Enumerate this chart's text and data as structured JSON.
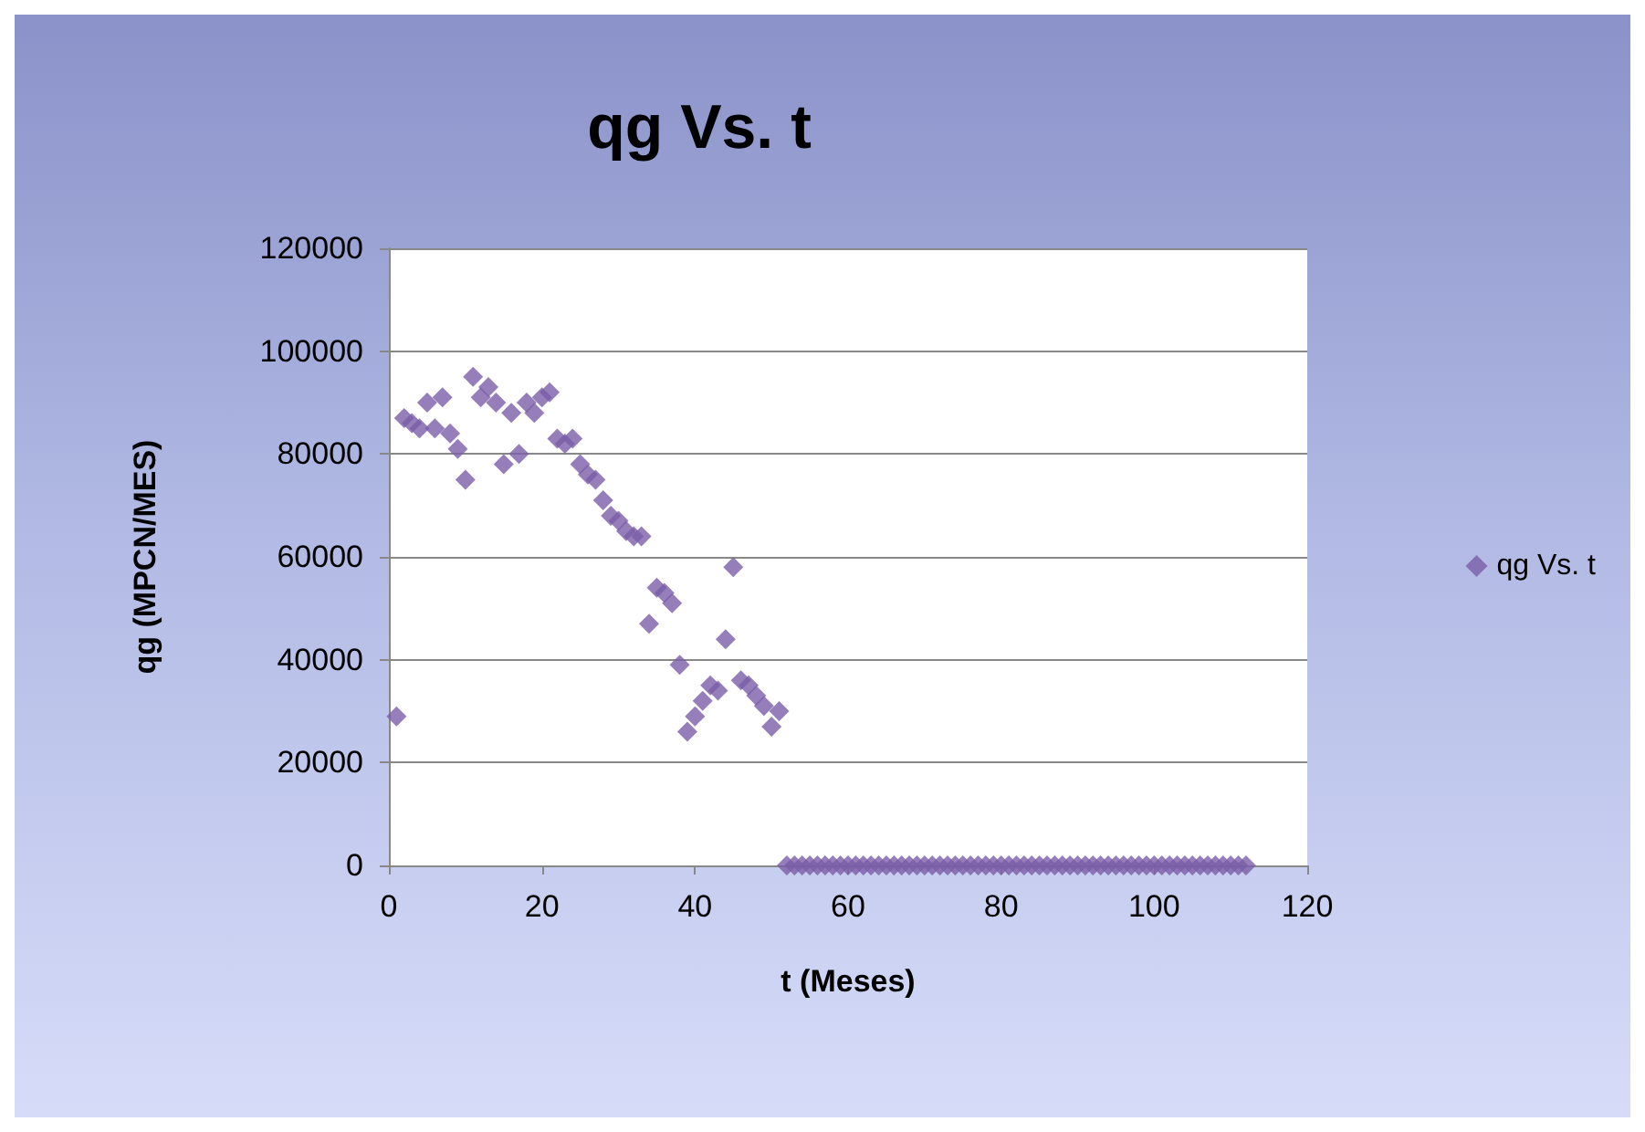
{
  "chart_data": {
    "type": "scatter",
    "title": "qg Vs. t",
    "xlabel": "t (Meses)",
    "ylabel": "qg (MPCN/MES)",
    "xlim": [
      0,
      120
    ],
    "xticks": [
      0,
      20,
      40,
      60,
      80,
      100,
      120
    ],
    "ylim": [
      0,
      120000
    ],
    "yticks": [
      0,
      20000,
      40000,
      60000,
      80000,
      100000,
      120000
    ],
    "grid": "y",
    "legend": "right",
    "marker": "diamond",
    "series": [
      {
        "name": "qg Vs. t",
        "color": "#7b5ea7",
        "x": [
          1,
          2,
          3,
          4,
          5,
          6,
          7,
          8,
          9,
          10,
          11,
          12,
          13,
          14,
          15,
          16,
          17,
          18,
          19,
          20,
          21,
          22,
          23,
          24,
          25,
          26,
          27,
          28,
          29,
          30,
          31,
          32,
          33,
          34,
          35,
          36,
          37,
          38,
          39,
          40,
          41,
          42,
          43,
          44,
          45,
          46,
          47,
          48,
          49,
          50,
          51,
          52,
          53,
          54,
          55,
          56,
          57,
          58,
          59,
          60,
          61,
          62,
          63,
          64,
          65,
          66,
          67,
          68,
          69,
          70,
          71,
          72,
          73,
          74,
          75,
          76,
          77,
          78,
          79,
          80,
          81,
          82,
          83,
          84,
          85,
          86,
          87,
          88,
          89,
          90,
          91,
          92,
          93,
          94,
          95,
          96,
          97,
          98,
          99,
          100,
          101,
          102,
          103,
          104,
          105,
          106,
          107,
          108,
          109,
          110,
          111,
          112
        ],
        "values": [
          29000,
          87000,
          86000,
          85000,
          90000,
          85000,
          91000,
          84000,
          81000,
          75000,
          95000,
          91000,
          93000,
          90000,
          78000,
          88000,
          80000,
          90000,
          88000,
          91000,
          92000,
          83000,
          82000,
          83000,
          78000,
          76000,
          75000,
          71000,
          68000,
          67000,
          65000,
          64000,
          64000,
          47000,
          54000,
          53000,
          51000,
          39000,
          26000,
          29000,
          32000,
          35000,
          34000,
          44000,
          58000,
          36000,
          35000,
          33000,
          31000,
          27000,
          30000,
          0,
          0,
          0,
          0,
          0,
          0,
          0,
          0,
          0,
          0,
          0,
          0,
          0,
          0,
          0,
          0,
          0,
          0,
          0,
          0,
          0,
          0,
          0,
          0,
          0,
          0,
          0,
          0,
          0,
          0,
          0,
          0,
          0,
          0,
          0,
          0,
          0,
          0,
          0,
          0,
          0,
          0,
          0,
          0,
          0,
          0,
          0,
          0,
          0,
          0,
          0,
          0,
          0,
          0,
          0,
          0,
          0,
          0,
          0,
          0,
          0
        ]
      }
    ]
  }
}
